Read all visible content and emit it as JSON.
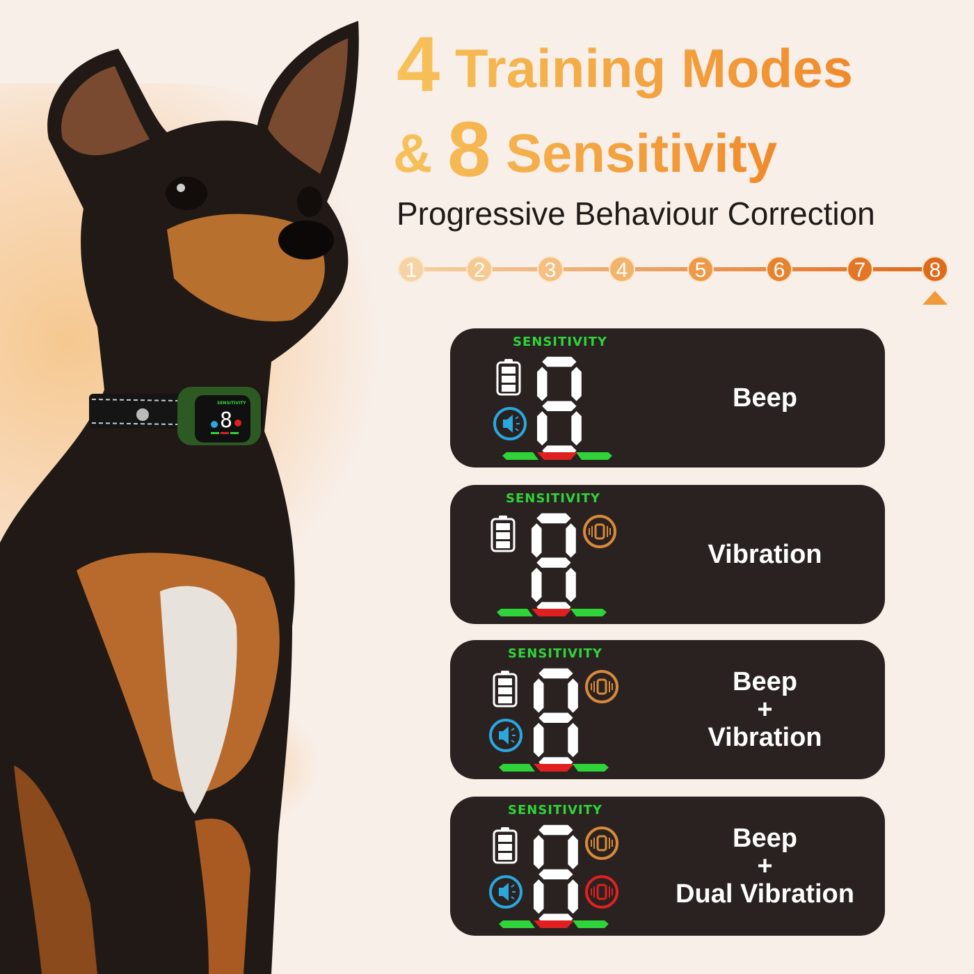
{
  "headline": {
    "line1_number": "4",
    "line1_text": "Training Modes",
    "line2_prefix": "&",
    "line2_number": "8",
    "line2_text": "Sensitivity",
    "subtitle": "Progressive Behaviour Correction"
  },
  "sensitivity_scale": {
    "levels": [
      "1",
      "2",
      "3",
      "4",
      "5",
      "6",
      "7",
      "8"
    ],
    "selected": "8"
  },
  "colors": {
    "accent_light": "#f6c25a",
    "accent_dark": "#e06a1c",
    "panel_bg": "#2a2220",
    "lcd_green": "#2fd43a",
    "lcd_red": "#e02020",
    "beep_blue": "#29a8e0",
    "vibration_orange": "#d88a3a"
  },
  "collar_display": {
    "label": "SENSITIVITY",
    "digit": "8"
  },
  "modes": [
    {
      "label": "SENSITIVITY",
      "digit": "8",
      "lines": [
        "Beep"
      ],
      "icons": [
        "beep"
      ]
    },
    {
      "label": "SENSITIVITY",
      "digit": "8",
      "lines": [
        "Vibration"
      ],
      "icons": [
        "vibration"
      ]
    },
    {
      "label": "SENSITIVITY",
      "digit": "8",
      "lines": [
        "Beep",
        "+",
        "Vibration"
      ],
      "icons": [
        "beep",
        "vibration"
      ]
    },
    {
      "label": "SENSITIVITY",
      "digit": "8",
      "lines": [
        "Beep",
        "+",
        "Dual Vibration"
      ],
      "icons": [
        "beep",
        "vibration",
        "dual-vibration"
      ]
    }
  ]
}
